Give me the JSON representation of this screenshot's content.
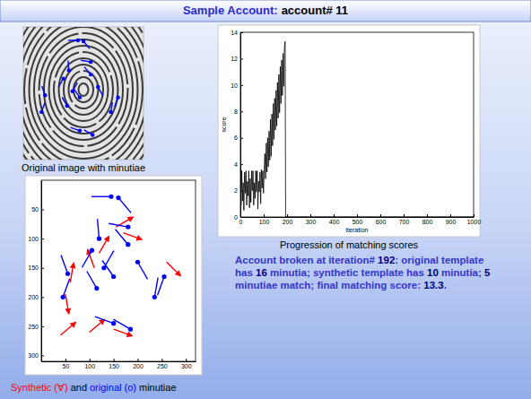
{
  "title": {
    "label": "Sample Account:",
    "account": "account# 11"
  },
  "image_caption": "Original image with minutiae",
  "chart_caption": "Progression of matching scores",
  "summary": [
    "Account broken at iteration# ",
    "192",
    ": original template has ",
    "16",
    " minutia; synthetic template has ",
    "10",
    " minutia; ",
    "5",
    " minutiae match; final matching score: ",
    "13.3",
    "."
  ],
  "scatter_caption_words": [
    "and",
    "minutiae"
  ],
  "chart_data": [
    {
      "type": "line",
      "xlabel": "iteration",
      "ylabel": "score",
      "color": "#000000",
      "x": [
        0,
        3,
        6,
        9,
        12,
        15,
        18,
        21,
        24,
        27,
        30,
        33,
        36,
        39,
        42,
        45,
        48,
        51,
        54,
        57,
        60,
        63,
        66,
        69,
        72,
        75,
        78,
        81,
        84,
        87,
        90,
        93,
        96,
        99,
        102,
        105,
        108,
        111,
        114,
        117,
        120,
        123,
        126,
        129,
        132,
        135,
        138,
        141,
        144,
        147,
        150,
        153,
        156,
        159,
        162,
        165,
        168,
        171,
        174,
        177,
        180,
        183,
        186,
        189,
        192,
        194,
        1000
      ],
      "values": [
        2.5,
        0.9,
        3.5,
        1.2,
        2.6,
        0.5,
        3.4,
        1.8,
        3.5,
        0.9,
        2.7,
        1.6,
        3.5,
        0.7,
        2.9,
        1.1,
        3.5,
        2.0,
        3.5,
        0.9,
        2.6,
        1.4,
        3.5,
        1.9,
        3.5,
        0.6,
        2.7,
        1.9,
        3.4,
        1.0,
        3.6,
        2.2,
        3.5,
        1.8,
        3.6,
        4.8,
        2.9,
        5.6,
        3.4,
        6.0,
        3.8,
        6.5,
        4.3,
        7.4,
        4.6,
        7.8,
        5.4,
        8.6,
        5.9,
        9.0,
        6.6,
        9.6,
        6.9,
        10.2,
        7.5,
        10.8,
        7.9,
        11.4,
        8.6,
        11.9,
        9.2,
        12.4,
        9.9,
        12.9,
        13.3,
        0,
        0
      ],
      "xlim": [
        0,
        1000
      ],
      "xticks": [
        0,
        100,
        200,
        300,
        400,
        500,
        600,
        700,
        800,
        900,
        1000
      ],
      "ylim": [
        0,
        14
      ],
      "yticks": [
        0,
        2,
        4,
        6,
        8,
        10,
        12,
        14
      ]
    },
    {
      "type": "scatter",
      "legend": "bottom",
      "xlim": [
        0,
        320
      ],
      "xticks": [
        50,
        100,
        150,
        200,
        250,
        300
      ],
      "ylim": [
        310,
        0
      ],
      "yticks": [
        50,
        100,
        150,
        200,
        250,
        300
      ],
      "series": [
        {
          "name": "Synthetic (∀)",
          "color": "#ff0000",
          "marker": "arrow",
          "x": [
            260,
            170,
            60,
            50,
            120,
            110,
            40,
            100,
            150,
            155
          ],
          "values": [
            140,
            90,
            175,
            195,
            125,
            150,
            265,
            260,
            255,
            80
          ],
          "angles": [
            45,
            20,
            280,
            80,
            300,
            250,
            320,
            320,
            20,
            330
          ]
        },
        {
          "name": "original (o)",
          "color": "#0000ff",
          "marker": "circle",
          "x": [
            145,
            160,
            180,
            120,
            180,
            105,
            55,
            150,
            115,
            45,
            255,
            235,
            150,
            185,
            200,
            130
          ],
          "values": [
            28,
            30,
            80,
            100,
            110,
            120,
            160,
            165,
            185,
            200,
            165,
            200,
            245,
            255,
            140,
            150
          ],
          "angles": [
            180,
            50,
            190,
            265,
            230,
            120,
            250,
            235,
            240,
            290,
            110,
            280,
            200,
            210,
            60,
            300
          ]
        }
      ]
    }
  ]
}
